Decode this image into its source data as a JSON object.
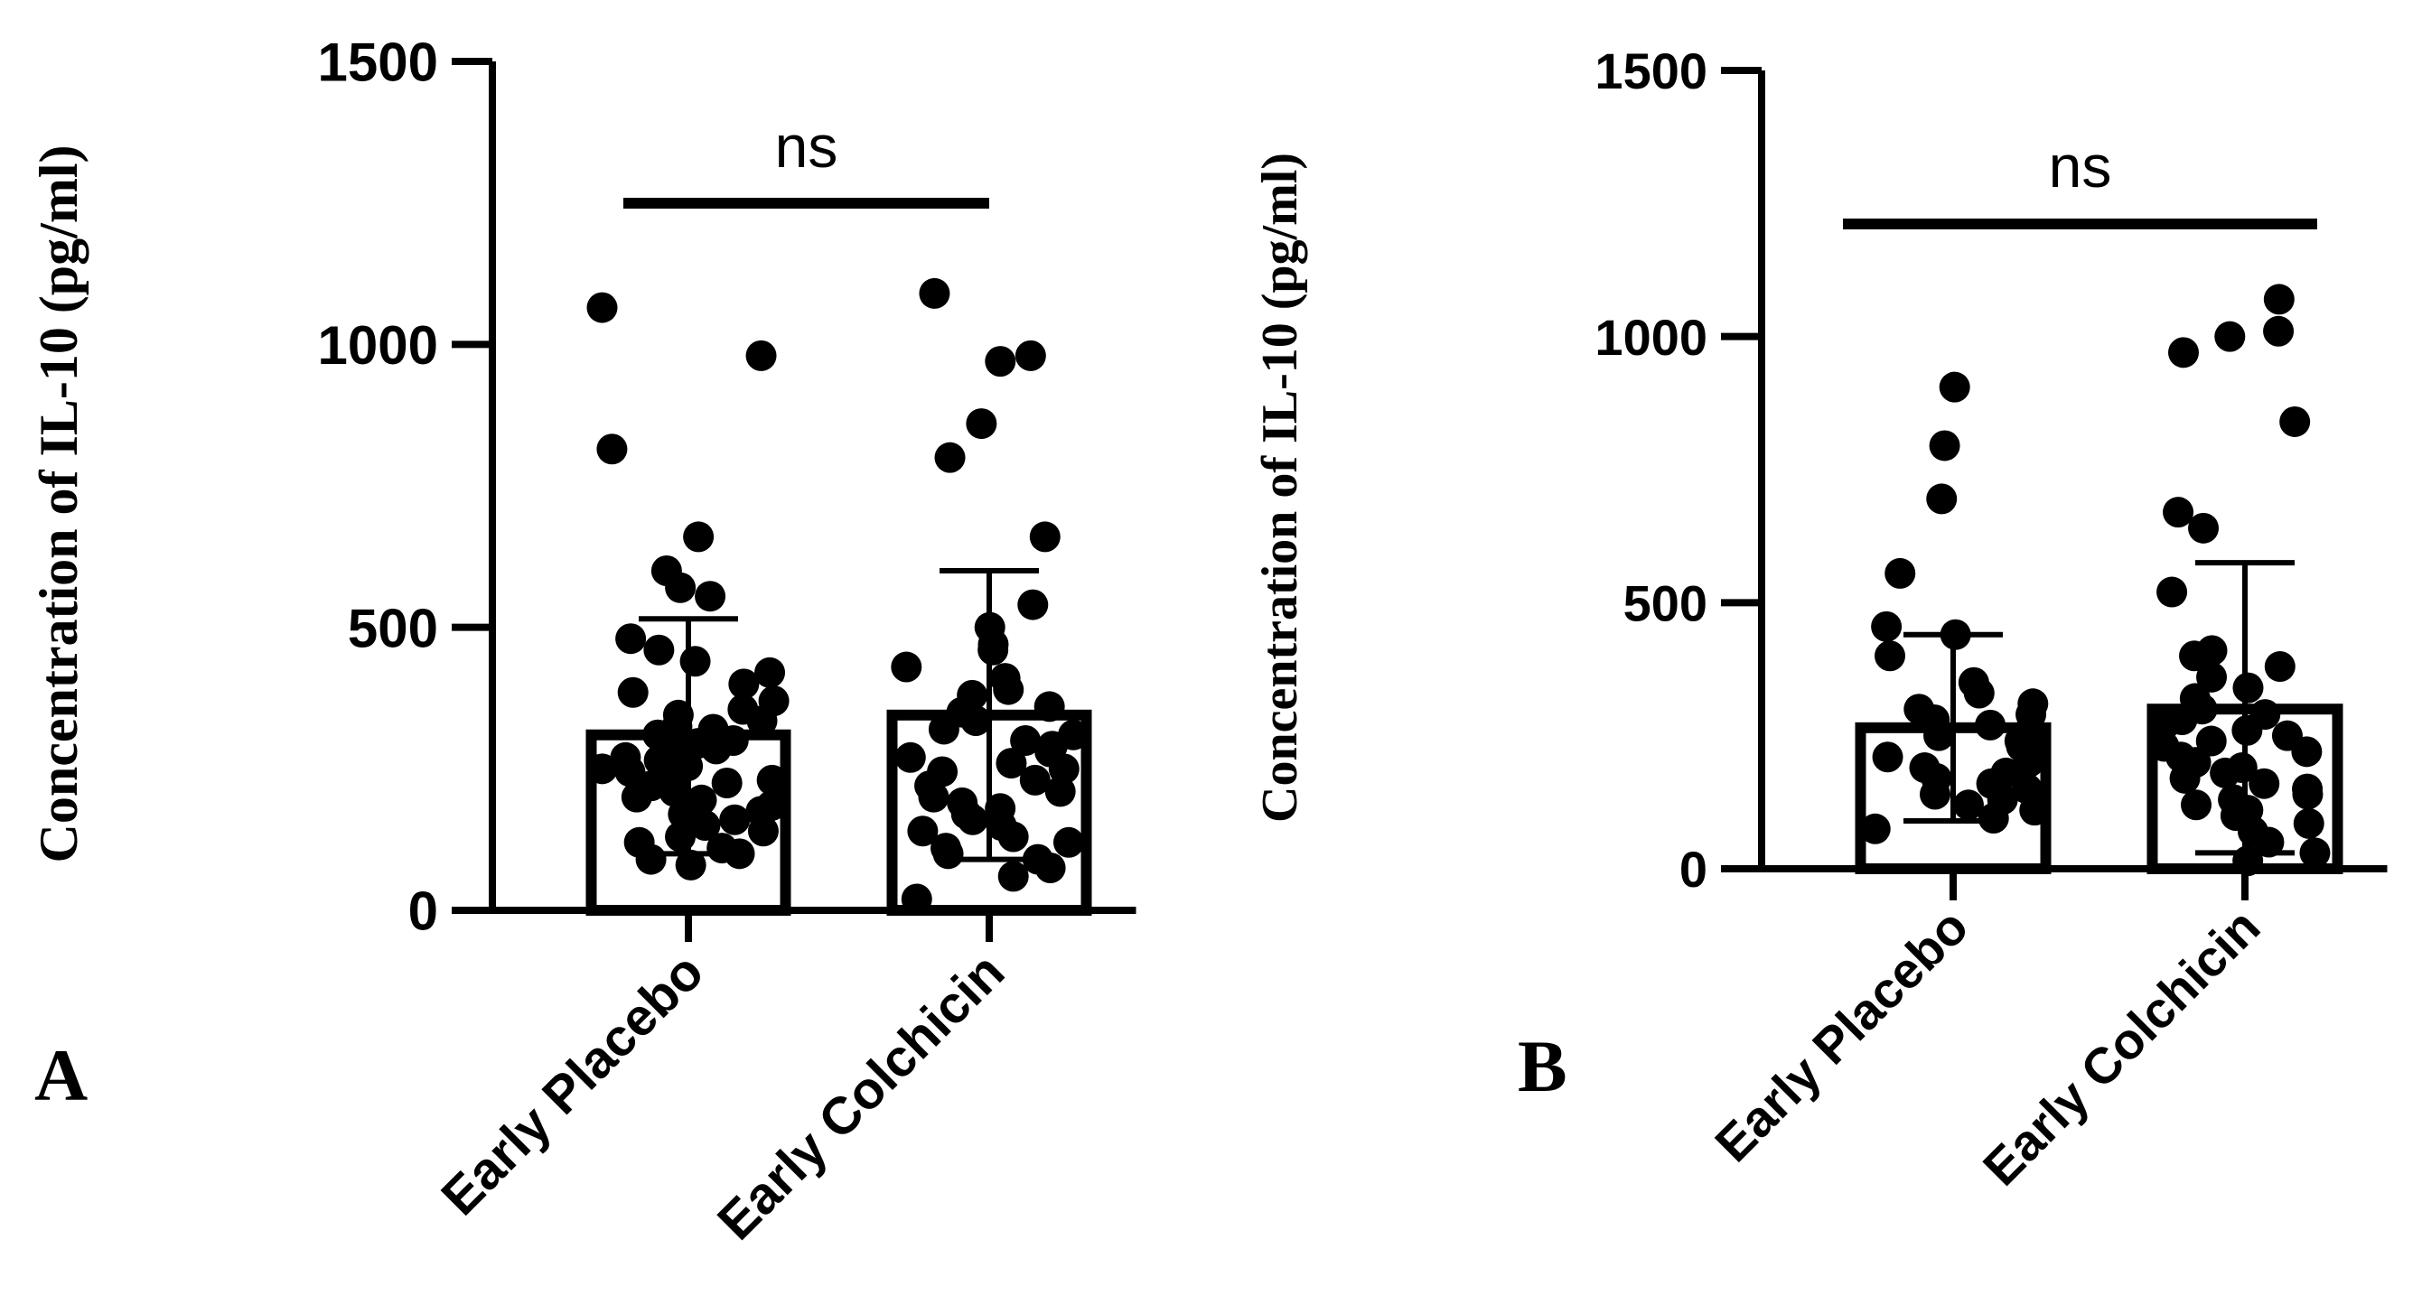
{
  "panels": [
    {
      "letter": "A",
      "chart": {
        "type": "bar",
        "ylabel": "Concentration of IL-10 (pg/ml)",
        "ylim": [
          0,
          1500
        ],
        "yticks": [
          0,
          500,
          1000,
          1500
        ],
        "categories": [
          "Early Placebo",
          "Early Colchicin"
        ],
        "values": [
          310,
          345
        ],
        "error_bars": [
          {
            "low": 100,
            "high": 515
          },
          {
            "low": 90,
            "high": 600
          }
        ],
        "points": [
          [
            1065,
            980,
            815,
            660,
            600,
            570,
            555,
            480,
            460,
            440,
            420,
            400,
            385,
            370,
            355,
            345,
            335,
            325,
            320,
            310,
            300,
            295,
            285,
            280,
            270,
            265,
            255,
            250,
            245,
            240,
            230,
            225,
            220,
            210,
            200,
            195,
            185,
            175,
            170,
            160,
            150,
            140,
            130,
            120,
            110,
            100,
            90,
            80
          ],
          [
            1090,
            980,
            970,
            860,
            800,
            660,
            540,
            500,
            470,
            460,
            430,
            410,
            390,
            380,
            360,
            350,
            335,
            320,
            310,
            300,
            290,
            280,
            270,
            260,
            250,
            245,
            230,
            220,
            210,
            200,
            190,
            180,
            170,
            160,
            150,
            140,
            130,
            120,
            110,
            100,
            90,
            75,
            60,
            20
          ]
        ],
        "significance": "ns",
        "colors": {
          "ink": "#000000",
          "bar_fill": "#ffffff"
        }
      }
    },
    {
      "letter": "B",
      "chart": {
        "type": "bar",
        "ylabel": "Concentration of IL-10 (pg/ml)",
        "ylim": [
          0,
          1500
        ],
        "yticks": [
          0,
          500,
          1000,
          1500
        ],
        "categories": [
          "Early Placebo",
          "Early Colchicin"
        ],
        "values": [
          265,
          300
        ],
        "error_bars": [
          {
            "low": 90,
            "high": 440
          },
          {
            "low": 30,
            "high": 575
          }
        ],
        "points": [
          [
            905,
            795,
            695,
            555,
            455,
            440,
            400,
            350,
            330,
            310,
            300,
            290,
            280,
            270,
            260,
            250,
            240,
            230,
            220,
            210,
            200,
            190,
            180,
            170,
            160,
            150,
            140,
            130,
            120,
            110,
            95,
            75
          ],
          [
            1070,
            1010,
            1000,
            970,
            840,
            670,
            640,
            520,
            410,
            400,
            380,
            360,
            340,
            320,
            300,
            290,
            280,
            270,
            260,
            250,
            240,
            230,
            220,
            210,
            200,
            190,
            180,
            170,
            160,
            150,
            140,
            130,
            120,
            110,
            100,
            85,
            70,
            50,
            30,
            15
          ]
        ],
        "significance": "ns",
        "colors": {
          "ink": "#000000",
          "bar_fill": "#ffffff"
        }
      }
    }
  ]
}
